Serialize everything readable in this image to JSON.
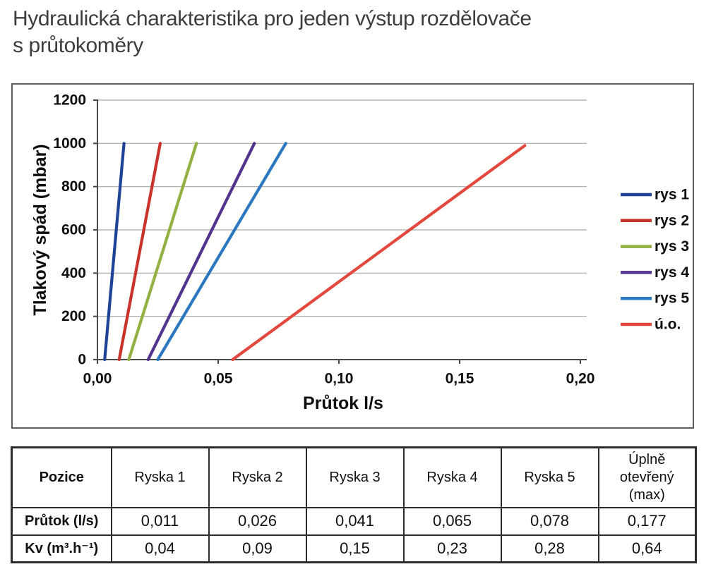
{
  "page": {
    "title": "Hydraulická charakteristika pro jeden výstup rozdělovače\ns průtokoměry"
  },
  "chart_data": {
    "type": "line",
    "title": "",
    "xlabel": "Průtok l/s",
    "ylabel": "Tlakový spád (mbar)",
    "xlim": [
      0,
      0.2
    ],
    "ylim": [
      0,
      1200
    ],
    "xtick_values": [
      0,
      0.05,
      0.1,
      0.15,
      0.2
    ],
    "xtick_labels": [
      "0,00",
      "0,05",
      "0,10",
      "0,15",
      "0,20"
    ],
    "ytick_values": [
      0,
      200,
      400,
      600,
      800,
      1000,
      1200
    ],
    "ytick_labels": [
      "0",
      "200",
      "400",
      "600",
      "800",
      "1000",
      "1200"
    ],
    "grid": true,
    "legend_position": "right-inside",
    "axis_color": "#4a4a4a",
    "grid_color": "#a8a8a8",
    "label_color": "#0d0d0d",
    "series": [
      {
        "name": "rys 1",
        "color": "#1f4497",
        "points": [
          [
            0.003,
            0
          ],
          [
            0.011,
            1000
          ]
        ]
      },
      {
        "name": "rys 2",
        "color": "#c8332c",
        "points": [
          [
            0.009,
            0
          ],
          [
            0.026,
            1000
          ]
        ]
      },
      {
        "name": "rys 3",
        "color": "#93b043",
        "points": [
          [
            0.013,
            0
          ],
          [
            0.041,
            1000
          ]
        ]
      },
      {
        "name": "rys 4",
        "color": "#54338f",
        "points": [
          [
            0.021,
            0
          ],
          [
            0.065,
            1000
          ]
        ]
      },
      {
        "name": "rys 5",
        "color": "#2b78c0",
        "points": [
          [
            0.025,
            0
          ],
          [
            0.078,
            1000
          ]
        ]
      },
      {
        "name": "ú.o.",
        "color": "#e2483d",
        "points": [
          [
            0.056,
            0
          ],
          [
            0.177,
            990
          ]
        ]
      }
    ]
  },
  "table": {
    "headers": [
      "Pozice",
      "Ryska 1",
      "Ryska 2",
      "Ryska 3",
      "Ryska 4",
      "Ryska 5",
      "Úplně\notevřený\n(max)"
    ],
    "rows": [
      {
        "label": "Průtok (l/s)",
        "values": [
          "0,011",
          "0,026",
          "0,041",
          "0,065",
          "0,078",
          "0,177"
        ]
      },
      {
        "label": "Kv (m³.h⁻¹)",
        "values": [
          "0,04",
          "0,09",
          "0,15",
          "0,23",
          "0,28",
          "0,64"
        ]
      }
    ]
  }
}
